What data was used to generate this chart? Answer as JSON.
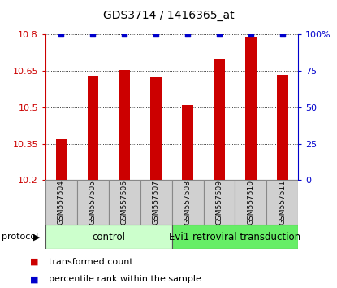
{
  "title": "GDS3714 / 1416365_at",
  "samples": [
    "GSM557504",
    "GSM557505",
    "GSM557506",
    "GSM557507",
    "GSM557508",
    "GSM557509",
    "GSM557510",
    "GSM557511"
  ],
  "red_values": [
    10.37,
    10.63,
    10.655,
    10.625,
    10.51,
    10.7,
    10.79,
    10.635
  ],
  "blue_values": [
    100,
    100,
    100,
    100,
    100,
    100,
    100,
    100
  ],
  "ylim_left": [
    10.2,
    10.8
  ],
  "yticks_left": [
    10.2,
    10.35,
    10.5,
    10.65,
    10.8
  ],
  "ylim_right": [
    0,
    100
  ],
  "yticks_right": [
    0,
    25,
    50,
    75,
    100
  ],
  "ytick_labels_right": [
    "0",
    "25",
    "50",
    "75",
    "100%"
  ],
  "bar_color": "#cc0000",
  "dot_color": "#0000cc",
  "bar_width": 0.35,
  "protocol_labels": [
    "control",
    "Evi1 retroviral transduction"
  ],
  "protocol_colors": [
    "#ccffcc",
    "#66ee66"
  ],
  "protocol_ranges": [
    4,
    4
  ],
  "protocol_label": "protocol",
  "legend_items": [
    "transformed count",
    "percentile rank within the sample"
  ],
  "legend_colors": [
    "#cc0000",
    "#0000cc"
  ],
  "grid_color": "#000000",
  "axis_color_left": "#cc0000",
  "axis_color_right": "#0000cc",
  "bg_color": "#ffffff",
  "tick_label_color_left": "#cc0000",
  "tick_label_color_right": "#0000cc"
}
